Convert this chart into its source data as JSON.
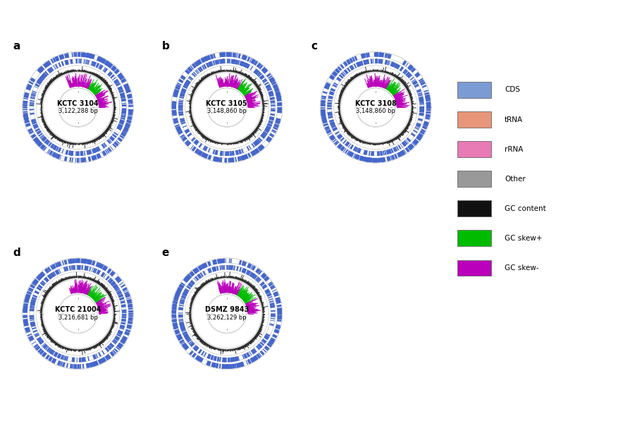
{
  "panels": [
    {
      "label": "a",
      "name": "KCTC 3104",
      "bp": "3,122,288 bp",
      "skew_plus_th1": 0.62,
      "skew_plus_th2": 1.08,
      "skew_minus_th1": 1.08,
      "skew_minus_th2": 1.95
    },
    {
      "label": "b",
      "name": "KCTC 3105",
      "bp": "3,148,860 bp",
      "skew_plus_th1": 0.58,
      "skew_plus_th2": 1.05,
      "skew_minus_th1": 1.05,
      "skew_minus_th2": 1.92
    },
    {
      "label": "c",
      "name": "KCTC 3108",
      "bp": "3,148,860 bp",
      "skew_plus_th1": 0.6,
      "skew_plus_th2": 1.07,
      "skew_minus_th1": 1.07,
      "skew_minus_th2": 1.94
    },
    {
      "label": "d",
      "name": "KCTC 21004",
      "bp": "3,216,681 bp",
      "skew_plus_th1": 0.55,
      "skew_plus_th2": 1.1,
      "skew_minus_th1": 1.1,
      "skew_minus_th2": 1.9
    },
    {
      "label": "e",
      "name": "DSMZ 9843",
      "bp": "3,262,129 bp",
      "skew_plus_th1": 0.5,
      "skew_plus_th2": 1.08,
      "skew_minus_th1": 1.08,
      "skew_minus_th2": 1.88
    }
  ],
  "legend_items": [
    {
      "label": "CDS",
      "color": "#7B9BD4"
    },
    {
      "label": "tRNA",
      "color": "#E8967A"
    },
    {
      "label": "rRNA",
      "color": "#E87AB5"
    },
    {
      "label": "Other",
      "color": "#999999"
    },
    {
      "label": "GC content",
      "color": "#111111"
    },
    {
      "label": "GC skew+",
      "color": "#00BB00"
    },
    {
      "label": "GC skew-",
      "color": "#BB00BB"
    }
  ],
  "cds_color": "#4466CC",
  "gc_content_color": "#111111",
  "gc_plus_color": "#00BB00",
  "gc_minus_color": "#BB00BB",
  "fig_width": 8.94,
  "fig_height": 5.97
}
